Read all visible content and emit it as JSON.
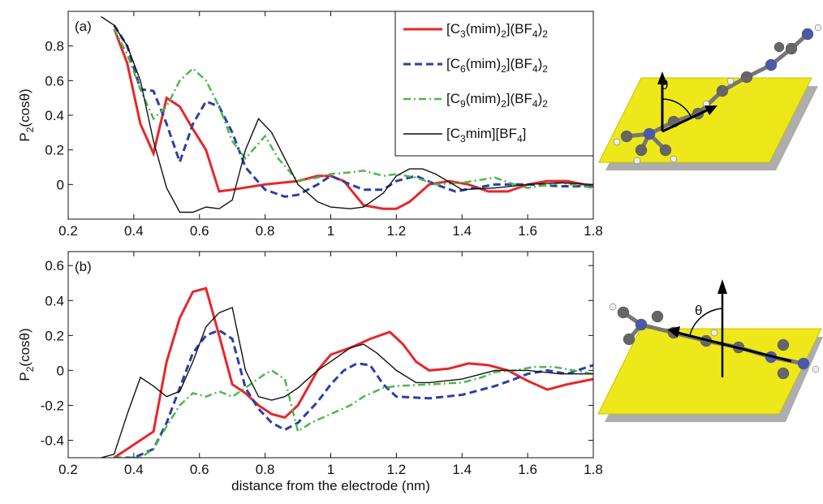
{
  "chart_data": [
    {
      "type": "line",
      "panel_label": "(a)",
      "ylabel": "P2(cosθ)",
      "xlim": [
        0.2,
        1.8
      ],
      "xticks": [
        0.2,
        0.4,
        0.6,
        0.8,
        1,
        1.2,
        1.4,
        1.6,
        1.8
      ],
      "ylim": [
        -0.2,
        1.0
      ],
      "yticks": [
        0,
        0.2,
        0.4,
        0.6,
        0.8
      ],
      "legend": "upper right",
      "series": [
        {
          "name": "[C3(mim)2](BF4)2",
          "color": "#e8262b",
          "linestyle": "solid",
          "x": [
            0.34,
            0.38,
            0.42,
            0.46,
            0.5,
            0.54,
            0.58,
            0.62,
            0.66,
            0.7,
            0.8,
            0.9,
            0.96,
            1.0,
            1.04,
            1.1,
            1.16,
            1.2,
            1.24,
            1.3,
            1.36,
            1.42,
            1.48,
            1.54,
            1.6,
            1.66,
            1.72,
            1.8
          ],
          "values": [
            0.9,
            0.7,
            0.35,
            0.18,
            0.5,
            0.45,
            0.32,
            0.2,
            -0.04,
            -0.03,
            0,
            0.02,
            0.05,
            0.05,
            0.02,
            -0.12,
            -0.14,
            -0.14,
            -0.1,
            0.0,
            0.02,
            0.0,
            -0.04,
            -0.04,
            0.0,
            0.02,
            0.02,
            -0.01
          ]
        },
        {
          "name": "[C6(mim)2](BF4)2",
          "color": "#2b3fa6",
          "linestyle": "dashed",
          "x": [
            0.34,
            0.38,
            0.42,
            0.46,
            0.5,
            0.54,
            0.58,
            0.62,
            0.66,
            0.7,
            0.74,
            0.8,
            0.86,
            0.9,
            0.96,
            1.0,
            1.06,
            1.1,
            1.16,
            1.2,
            1.26,
            1.32,
            1.38,
            1.44,
            1.5,
            1.6,
            1.7,
            1.8
          ],
          "values": [
            0.92,
            0.8,
            0.55,
            0.54,
            0.35,
            0.13,
            0.35,
            0.48,
            0.45,
            0.3,
            0.1,
            -0.03,
            -0.07,
            -0.06,
            0.0,
            0.05,
            0.0,
            -0.03,
            -0.03,
            0.02,
            0.05,
            0.0,
            -0.04,
            -0.02,
            0.0,
            0.0,
            -0.01,
            -0.01
          ]
        },
        {
          "name": "[C9(mim)2](BF4)2",
          "color": "#4cb84a",
          "linestyle": "dashdot",
          "x": [
            0.34,
            0.38,
            0.42,
            0.46,
            0.5,
            0.54,
            0.58,
            0.62,
            0.66,
            0.7,
            0.74,
            0.8,
            0.84,
            0.9,
            0.96,
            1.0,
            1.06,
            1.1,
            1.16,
            1.2,
            1.26,
            1.32,
            1.4,
            1.5,
            1.56,
            1.6,
            1.7,
            1.8
          ],
          "values": [
            0.9,
            0.75,
            0.55,
            0.38,
            0.45,
            0.6,
            0.67,
            0.6,
            0.45,
            0.25,
            0.15,
            0.28,
            0.15,
            0.02,
            0.04,
            0.06,
            0.07,
            0.08,
            0.05,
            0.06,
            0.04,
            0.0,
            0.01,
            0.04,
            0.0,
            -0.02,
            0.01,
            -0.02
          ]
        },
        {
          "name": "[C3mim][BF4]",
          "color": "#111111",
          "linestyle": "thin",
          "x": [
            0.3,
            0.34,
            0.38,
            0.42,
            0.46,
            0.5,
            0.54,
            0.58,
            0.62,
            0.66,
            0.7,
            0.74,
            0.78,
            0.82,
            0.86,
            0.9,
            0.96,
            1.0,
            1.06,
            1.1,
            1.16,
            1.2,
            1.24,
            1.28,
            1.32,
            1.4,
            1.5,
            1.6,
            1.7,
            1.8
          ],
          "values": [
            0.97,
            0.92,
            0.8,
            0.6,
            0.25,
            -0.02,
            -0.16,
            -0.16,
            -0.13,
            -0.14,
            -0.09,
            0.2,
            0.38,
            0.3,
            0.15,
            0.0,
            -0.1,
            -0.13,
            -0.14,
            -0.13,
            -0.05,
            0.05,
            0.09,
            0.09,
            0.06,
            -0.03,
            -0.02,
            0.0,
            0.01,
            0.0
          ]
        }
      ]
    },
    {
      "type": "line",
      "panel_label": "(b)",
      "ylabel": "P2(cosθ)",
      "xlabel": "distance from the electrode (nm)",
      "xlim": [
        0.2,
        1.8
      ],
      "xticks": [
        0.2,
        0.4,
        0.6,
        0.8,
        1,
        1.2,
        1.4,
        1.6,
        1.8
      ],
      "ylim": [
        -0.5,
        0.68
      ],
      "yticks": [
        -0.4,
        -0.2,
        0,
        0.2,
        0.4,
        0.6
      ],
      "series": [
        {
          "color": "#e8262b",
          "linestyle": "solid",
          "x": [
            0.34,
            0.38,
            0.42,
            0.46,
            0.5,
            0.54,
            0.58,
            0.62,
            0.66,
            0.7,
            0.74,
            0.78,
            0.82,
            0.86,
            0.9,
            0.96,
            1.0,
            1.06,
            1.12,
            1.18,
            1.22,
            1.26,
            1.3,
            1.36,
            1.42,
            1.48,
            1.54,
            1.6,
            1.66,
            1.72,
            1.8
          ],
          "values": [
            -0.5,
            -0.45,
            -0.4,
            -0.35,
            0.05,
            0.3,
            0.45,
            0.47,
            0.2,
            -0.08,
            -0.13,
            -0.2,
            -0.25,
            -0.27,
            -0.2,
            0.0,
            0.09,
            0.13,
            0.18,
            0.22,
            0.15,
            0.05,
            0.0,
            0.01,
            0.04,
            0.03,
            0.0,
            -0.06,
            -0.11,
            -0.08,
            -0.05
          ]
        },
        {
          "color": "#2b3fa6",
          "linestyle": "dashed",
          "x": [
            0.34,
            0.4,
            0.46,
            0.5,
            0.54,
            0.58,
            0.62,
            0.66,
            0.7,
            0.74,
            0.78,
            0.82,
            0.86,
            0.9,
            0.96,
            1.0,
            1.04,
            1.08,
            1.12,
            1.16,
            1.2,
            1.3,
            1.4,
            1.5,
            1.56,
            1.6,
            1.66,
            1.72,
            1.8
          ],
          "values": [
            -0.5,
            -0.5,
            -0.45,
            -0.3,
            -0.1,
            0.1,
            0.2,
            0.23,
            0.18,
            -0.1,
            -0.22,
            -0.3,
            -0.34,
            -0.3,
            -0.18,
            -0.08,
            0.0,
            0.04,
            0.03,
            -0.08,
            -0.15,
            -0.16,
            -0.14,
            -0.09,
            -0.05,
            -0.02,
            0.0,
            -0.02,
            0.03
          ]
        },
        {
          "color": "#4cb84a",
          "linestyle": "dashdot",
          "x": [
            0.34,
            0.42,
            0.46,
            0.5,
            0.54,
            0.58,
            0.62,
            0.66,
            0.7,
            0.74,
            0.8,
            0.82,
            0.86,
            0.9,
            0.94,
            1.0,
            1.06,
            1.1,
            1.16,
            1.2,
            1.3,
            1.4,
            1.46,
            1.5,
            1.56,
            1.62,
            1.68,
            1.74,
            1.8
          ],
          "values": [
            -0.5,
            -0.5,
            -0.45,
            -0.32,
            -0.2,
            -0.13,
            -0.15,
            -0.12,
            -0.15,
            -0.1,
            -0.02,
            0.0,
            -0.05,
            -0.35,
            -0.3,
            -0.25,
            -0.2,
            -0.15,
            -0.1,
            -0.09,
            -0.08,
            -0.07,
            -0.04,
            -0.01,
            0.0,
            0.02,
            0.02,
            0.0,
            -0.02
          ]
        },
        {
          "color": "#111111",
          "linestyle": "thin",
          "x": [
            0.3,
            0.34,
            0.38,
            0.42,
            0.46,
            0.5,
            0.54,
            0.58,
            0.62,
            0.66,
            0.7,
            0.74,
            0.78,
            0.82,
            0.86,
            0.9,
            0.96,
            1.0,
            1.06,
            1.1,
            1.14,
            1.2,
            1.26,
            1.3,
            1.4,
            1.5,
            1.6,
            1.7,
            1.8
          ],
          "values": [
            -0.5,
            -0.48,
            -0.25,
            -0.04,
            -0.09,
            -0.15,
            -0.12,
            0.05,
            0.25,
            0.33,
            0.36,
            0.0,
            -0.15,
            -0.17,
            -0.15,
            -0.1,
            0.0,
            0.05,
            0.13,
            0.15,
            0.1,
            0.0,
            -0.07,
            -0.07,
            -0.05,
            0.0,
            0.0,
            -0.02,
            -0.02
          ]
        }
      ]
    }
  ],
  "illustration_labels": [
    "θ",
    "θ"
  ]
}
